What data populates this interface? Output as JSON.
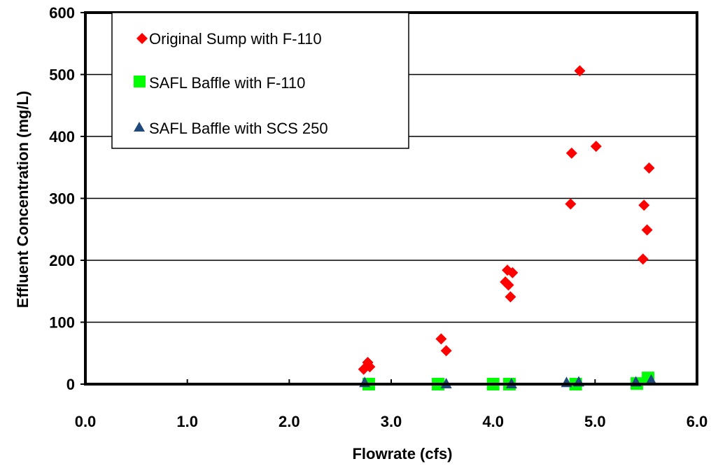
{
  "chart_data": {
    "type": "scatter",
    "title": "",
    "xlabel": "Flowrate (cfs)",
    "ylabel": "Effluent Concentration (mg/L)",
    "xlim": [
      0.0,
      6.0
    ],
    "ylim": [
      0,
      600
    ],
    "x_ticks": [
      "0.0",
      "1.0",
      "2.0",
      "3.0",
      "4.0",
      "5.0",
      "6.0"
    ],
    "y_ticks": [
      "0",
      "100",
      "200",
      "300",
      "400",
      "500",
      "600"
    ],
    "grid": "horizontal",
    "legend_position": "top-left",
    "series": [
      {
        "name": "Original Sump with F-110",
        "marker": "diamond",
        "color": "#ff0000",
        "points": [
          [
            2.73,
            24
          ],
          [
            2.77,
            35
          ],
          [
            2.79,
            28
          ],
          [
            3.49,
            73
          ],
          [
            3.54,
            54
          ],
          [
            4.12,
            165
          ],
          [
            4.14,
            184
          ],
          [
            4.15,
            160
          ],
          [
            4.17,
            141
          ],
          [
            4.19,
            180
          ],
          [
            4.76,
            291
          ],
          [
            4.77,
            373
          ],
          [
            4.85,
            506
          ],
          [
            5.01,
            384
          ],
          [
            5.47,
            202
          ],
          [
            5.48,
            289
          ],
          [
            5.51,
            249
          ],
          [
            5.53,
            349
          ]
        ]
      },
      {
        "name": "SAFL Baffle with F-110",
        "marker": "square",
        "color": "#00ff00",
        "points": [
          [
            2.78,
            0
          ],
          [
            3.46,
            0
          ],
          [
            4.0,
            0
          ],
          [
            4.16,
            0
          ],
          [
            4.81,
            0
          ],
          [
            5.41,
            1
          ],
          [
            5.52,
            10
          ]
        ]
      },
      {
        "name": "SAFL Baffle with SCS 250",
        "marker": "triangle",
        "color": "#1f497d",
        "points": [
          [
            2.74,
            2
          ],
          [
            3.54,
            0
          ],
          [
            4.18,
            0
          ],
          [
            4.72,
            2
          ],
          [
            4.84,
            3
          ],
          [
            5.4,
            3
          ],
          [
            5.55,
            6
          ]
        ]
      }
    ]
  }
}
